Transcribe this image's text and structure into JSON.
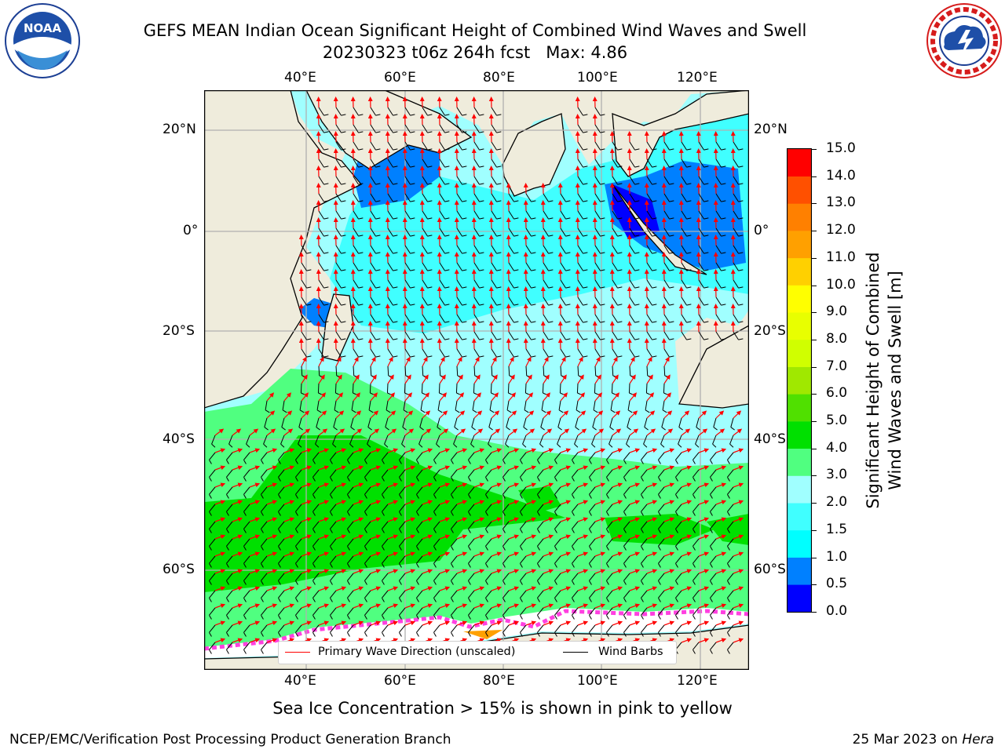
{
  "header": {
    "title_line1": "GEFS MEAN Indian Ocean Significant Height of Combined Wind Waves and Swell",
    "title_line2": "20230323 t06z 264h fcst   Max: 4.86"
  },
  "logos": {
    "left": "noaa-logo",
    "right": "national-weather-service-logo"
  },
  "map": {
    "lon_labels": [
      "40°E",
      "60°E",
      "80°E",
      "100°E",
      "120°E"
    ],
    "lat_labels": [
      "20°N",
      "0°",
      "20°S",
      "40°S",
      "60°S"
    ],
    "lon_range": [
      20,
      130
    ],
    "lat_range": [
      -76,
      28
    ],
    "grid": true,
    "colors": {
      "land": "#efecdc",
      "coast": "#000000",
      "barb": "#000000",
      "wave_arrow": "#ff0000"
    }
  },
  "legend": {
    "items": [
      {
        "label": "Primary Wave Direction (unscaled)",
        "color": "#ff0000"
      },
      {
        "label": "Wind Barbs",
        "color": "#000000"
      }
    ]
  },
  "colorbar": {
    "label_line1": "Significant Height of Combined",
    "label_line2": "Wind Waves and Swell [m]",
    "ticks": [
      "0.0",
      "0.5",
      "1.0",
      "1.5",
      "2.0",
      "3.0",
      "4.0",
      "5.0",
      "6.0",
      "7.0",
      "8.0",
      "9.0",
      "10.0",
      "11.0",
      "12.0",
      "13.0",
      "14.0",
      "15.0"
    ],
    "colors": [
      "#0000ff",
      "#0080ff",
      "#00ffff",
      "#40ffff",
      "#a0ffff",
      "#50ff80",
      "#00e000",
      "#50e000",
      "#a0e800",
      "#d0ff00",
      "#e8ff00",
      "#ffff00",
      "#ffd000",
      "#ffa000",
      "#ff8000",
      "#ff5000",
      "#ff0000"
    ]
  },
  "caption": "Sea Ice Concentration > 15% is shown in pink to yellow",
  "footer": {
    "left": "NCEP/EMC/Verification Post Processing Product Generation Branch",
    "right_date": "25 Mar 2023 on ",
    "right_host": "Hera"
  }
}
